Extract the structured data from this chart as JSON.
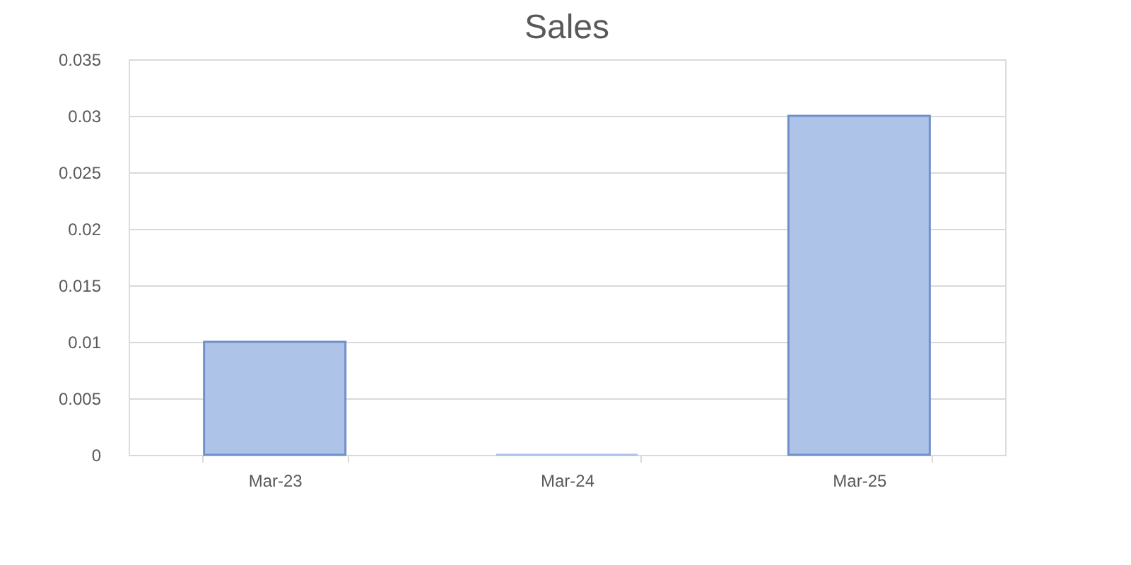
{
  "chart_data": {
    "type": "bar",
    "title": "Sales",
    "categories": [
      "Mar-23",
      "Mar-24",
      "Mar-25"
    ],
    "values": [
      0.01,
      0,
      0.03
    ],
    "color": "#adc3e8",
    "ylim": [
      0,
      0.035
    ],
    "yticks": [
      0,
      0.005,
      0.01,
      0.015,
      0.02,
      0.025,
      0.03,
      0.035
    ],
    "grid": "y"
  }
}
